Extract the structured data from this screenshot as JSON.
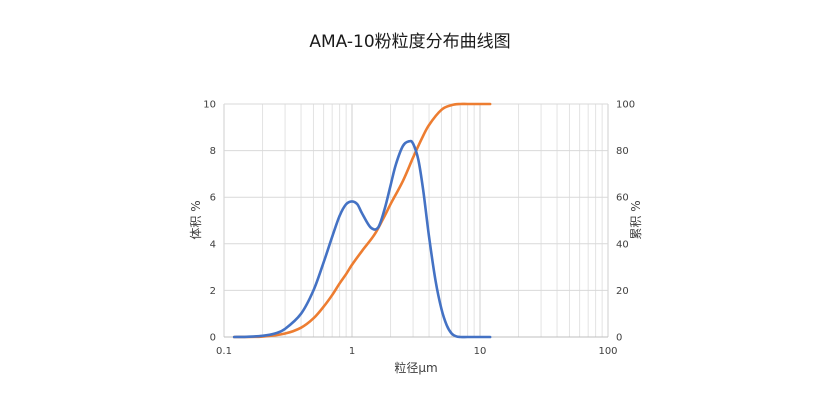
{
  "chart_data": {
    "type": "line",
    "title": "AMA-10粉粒度分布曲线图",
    "xlabel": "粒径μm",
    "ylabel": "体积 %",
    "y2label": "累积 %",
    "x_scale": "log",
    "xlim": [
      0.1,
      100
    ],
    "ylim": [
      0,
      10
    ],
    "y2lim": [
      0,
      100
    ],
    "x_ticks": [
      "0.1",
      "1",
      "10",
      "100"
    ],
    "y_ticks": [
      "0",
      "2",
      "4",
      "6",
      "8",
      "10"
    ],
    "y2_ticks": [
      "0",
      "20",
      "40",
      "60",
      "80",
      "100"
    ],
    "grid": true,
    "legend": "none",
    "series": [
      {
        "axis": "left",
        "color": "#4472C4",
        "x": [
          0.12,
          0.15,
          0.2,
          0.25,
          0.3,
          0.4,
          0.5,
          0.6,
          0.7,
          0.8,
          0.9,
          1.0,
          1.1,
          1.2,
          1.4,
          1.6,
          1.8,
          2.0,
          2.2,
          2.5,
          2.8,
          3.0,
          3.3,
          3.6,
          4.0,
          4.5,
          5.0,
          5.5,
          6.0,
          6.5,
          7.0,
          8.0,
          10.0,
          12.0
        ],
        "values": [
          0.0,
          0.01,
          0.05,
          0.15,
          0.35,
          1.0,
          2.0,
          3.2,
          4.3,
          5.2,
          5.7,
          5.82,
          5.7,
          5.3,
          4.7,
          4.7,
          5.5,
          6.5,
          7.4,
          8.2,
          8.4,
          8.3,
          7.6,
          6.3,
          4.3,
          2.4,
          1.2,
          0.5,
          0.15,
          0.03,
          0.0,
          0.0,
          0.0,
          0.0
        ]
      },
      {
        "axis": "right",
        "color": "#ED7D31",
        "x": [
          0.12,
          0.2,
          0.3,
          0.4,
          0.5,
          0.6,
          0.7,
          0.8,
          0.9,
          1.0,
          1.2,
          1.5,
          1.8,
          2.0,
          2.5,
          3.0,
          3.5,
          4.0,
          5.0,
          6.0,
          7.0,
          8.0,
          10.0,
          12.0
        ],
        "values": [
          0.0,
          0.2,
          1.5,
          4.0,
          8.0,
          13.0,
          18.0,
          23.0,
          27.0,
          31.0,
          37.0,
          44.0,
          52.0,
          57.0,
          67.0,
          77.0,
          85.0,
          91.0,
          97.5,
          99.5,
          100.0,
          100.0,
          100.0,
          100.0
        ]
      }
    ]
  }
}
